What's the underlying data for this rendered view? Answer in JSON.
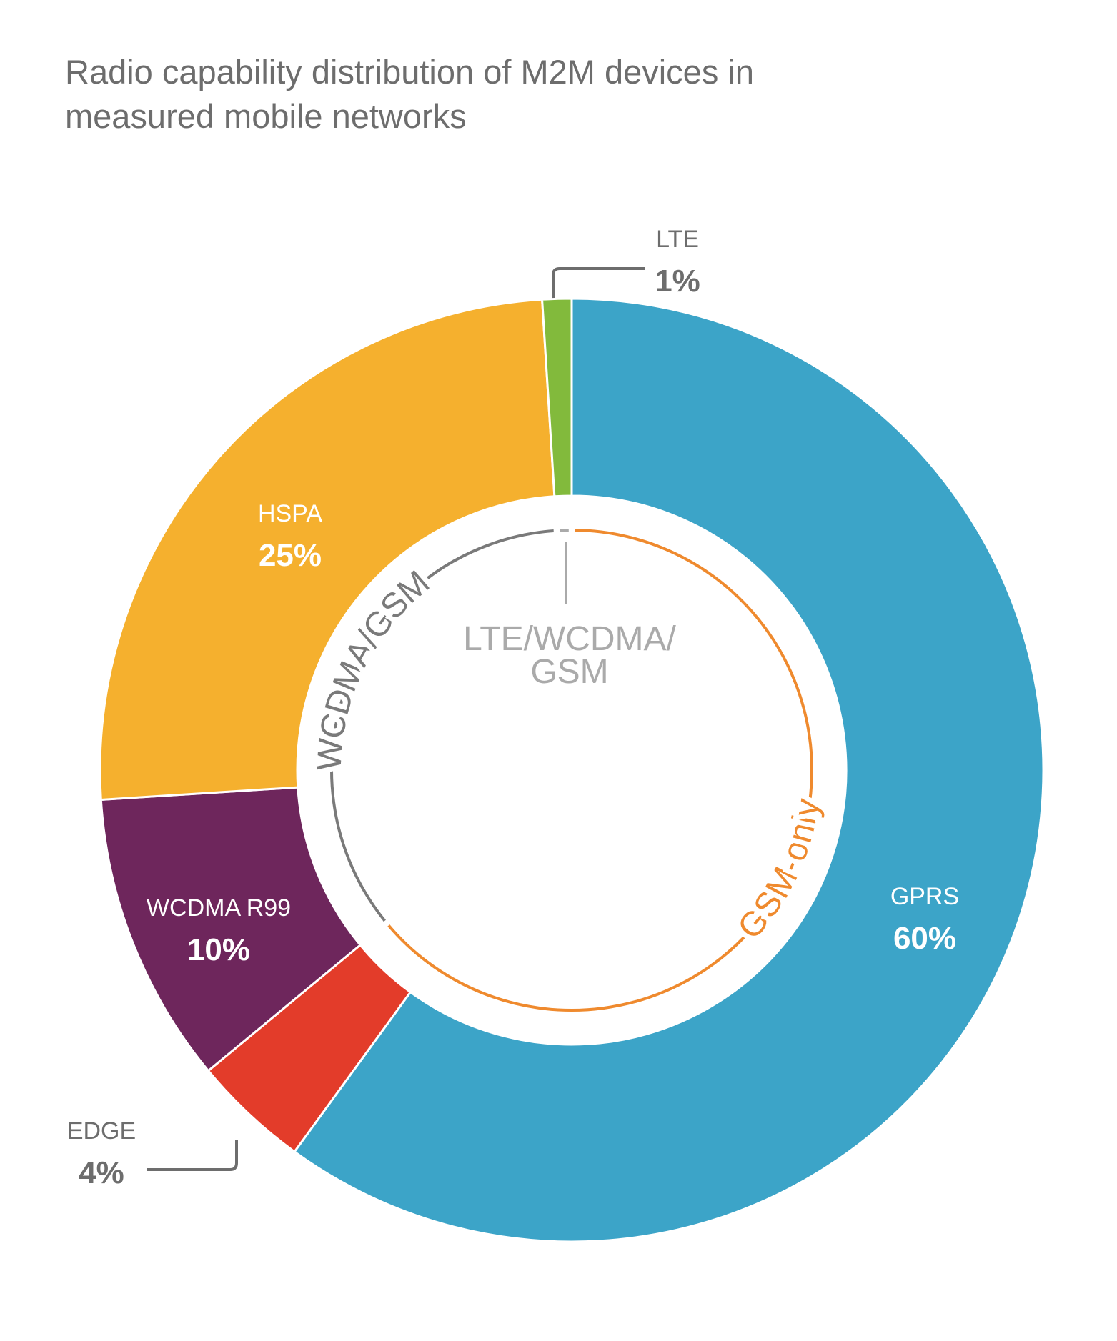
{
  "chart_data": {
    "type": "donut",
    "title": "Radio capability distribution of M2M devices in measured mobile networks",
    "categories": [
      "GPRS",
      "EDGE",
      "WCDMA R99",
      "HSPA",
      "LTE"
    ],
    "values": [
      60,
      4,
      10,
      25,
      1
    ],
    "value_labels": [
      "60%",
      "4%",
      "10%",
      "25%",
      "1%"
    ],
    "colors": [
      "#3ca4c8",
      "#e33c2a",
      "#6e265c",
      "#f5b02e",
      "#82ba3c"
    ],
    "inner_ring": {
      "categories": [
        "GSM-only",
        "WCDMA/GSM",
        "LTE/WCDMA/\nGSM"
      ],
      "values": [
        64,
        35,
        1
      ],
      "colors": [
        "#ef8a2e",
        "#7a7a7a",
        "#aaaaaa"
      ]
    }
  }
}
